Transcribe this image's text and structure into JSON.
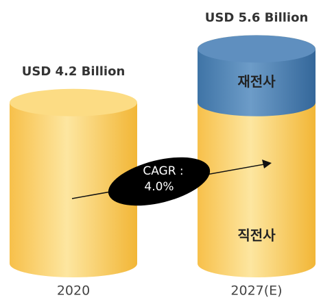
{
  "chart_data": {
    "type": "bar",
    "categories": [
      "2020",
      "2027(E)"
    ],
    "values": [
      4.2,
      5.6
    ],
    "value_labels": [
      "USD 4.2 Billion",
      "USD 5.6 Billion"
    ],
    "color": "#f9c95a",
    "segment_labels": [
      "직전사",
      "재전사"
    ],
    "segment_color": "#4a7fb0",
    "annotation": [
      "CAGR :",
      "4.0%"
    ]
  }
}
